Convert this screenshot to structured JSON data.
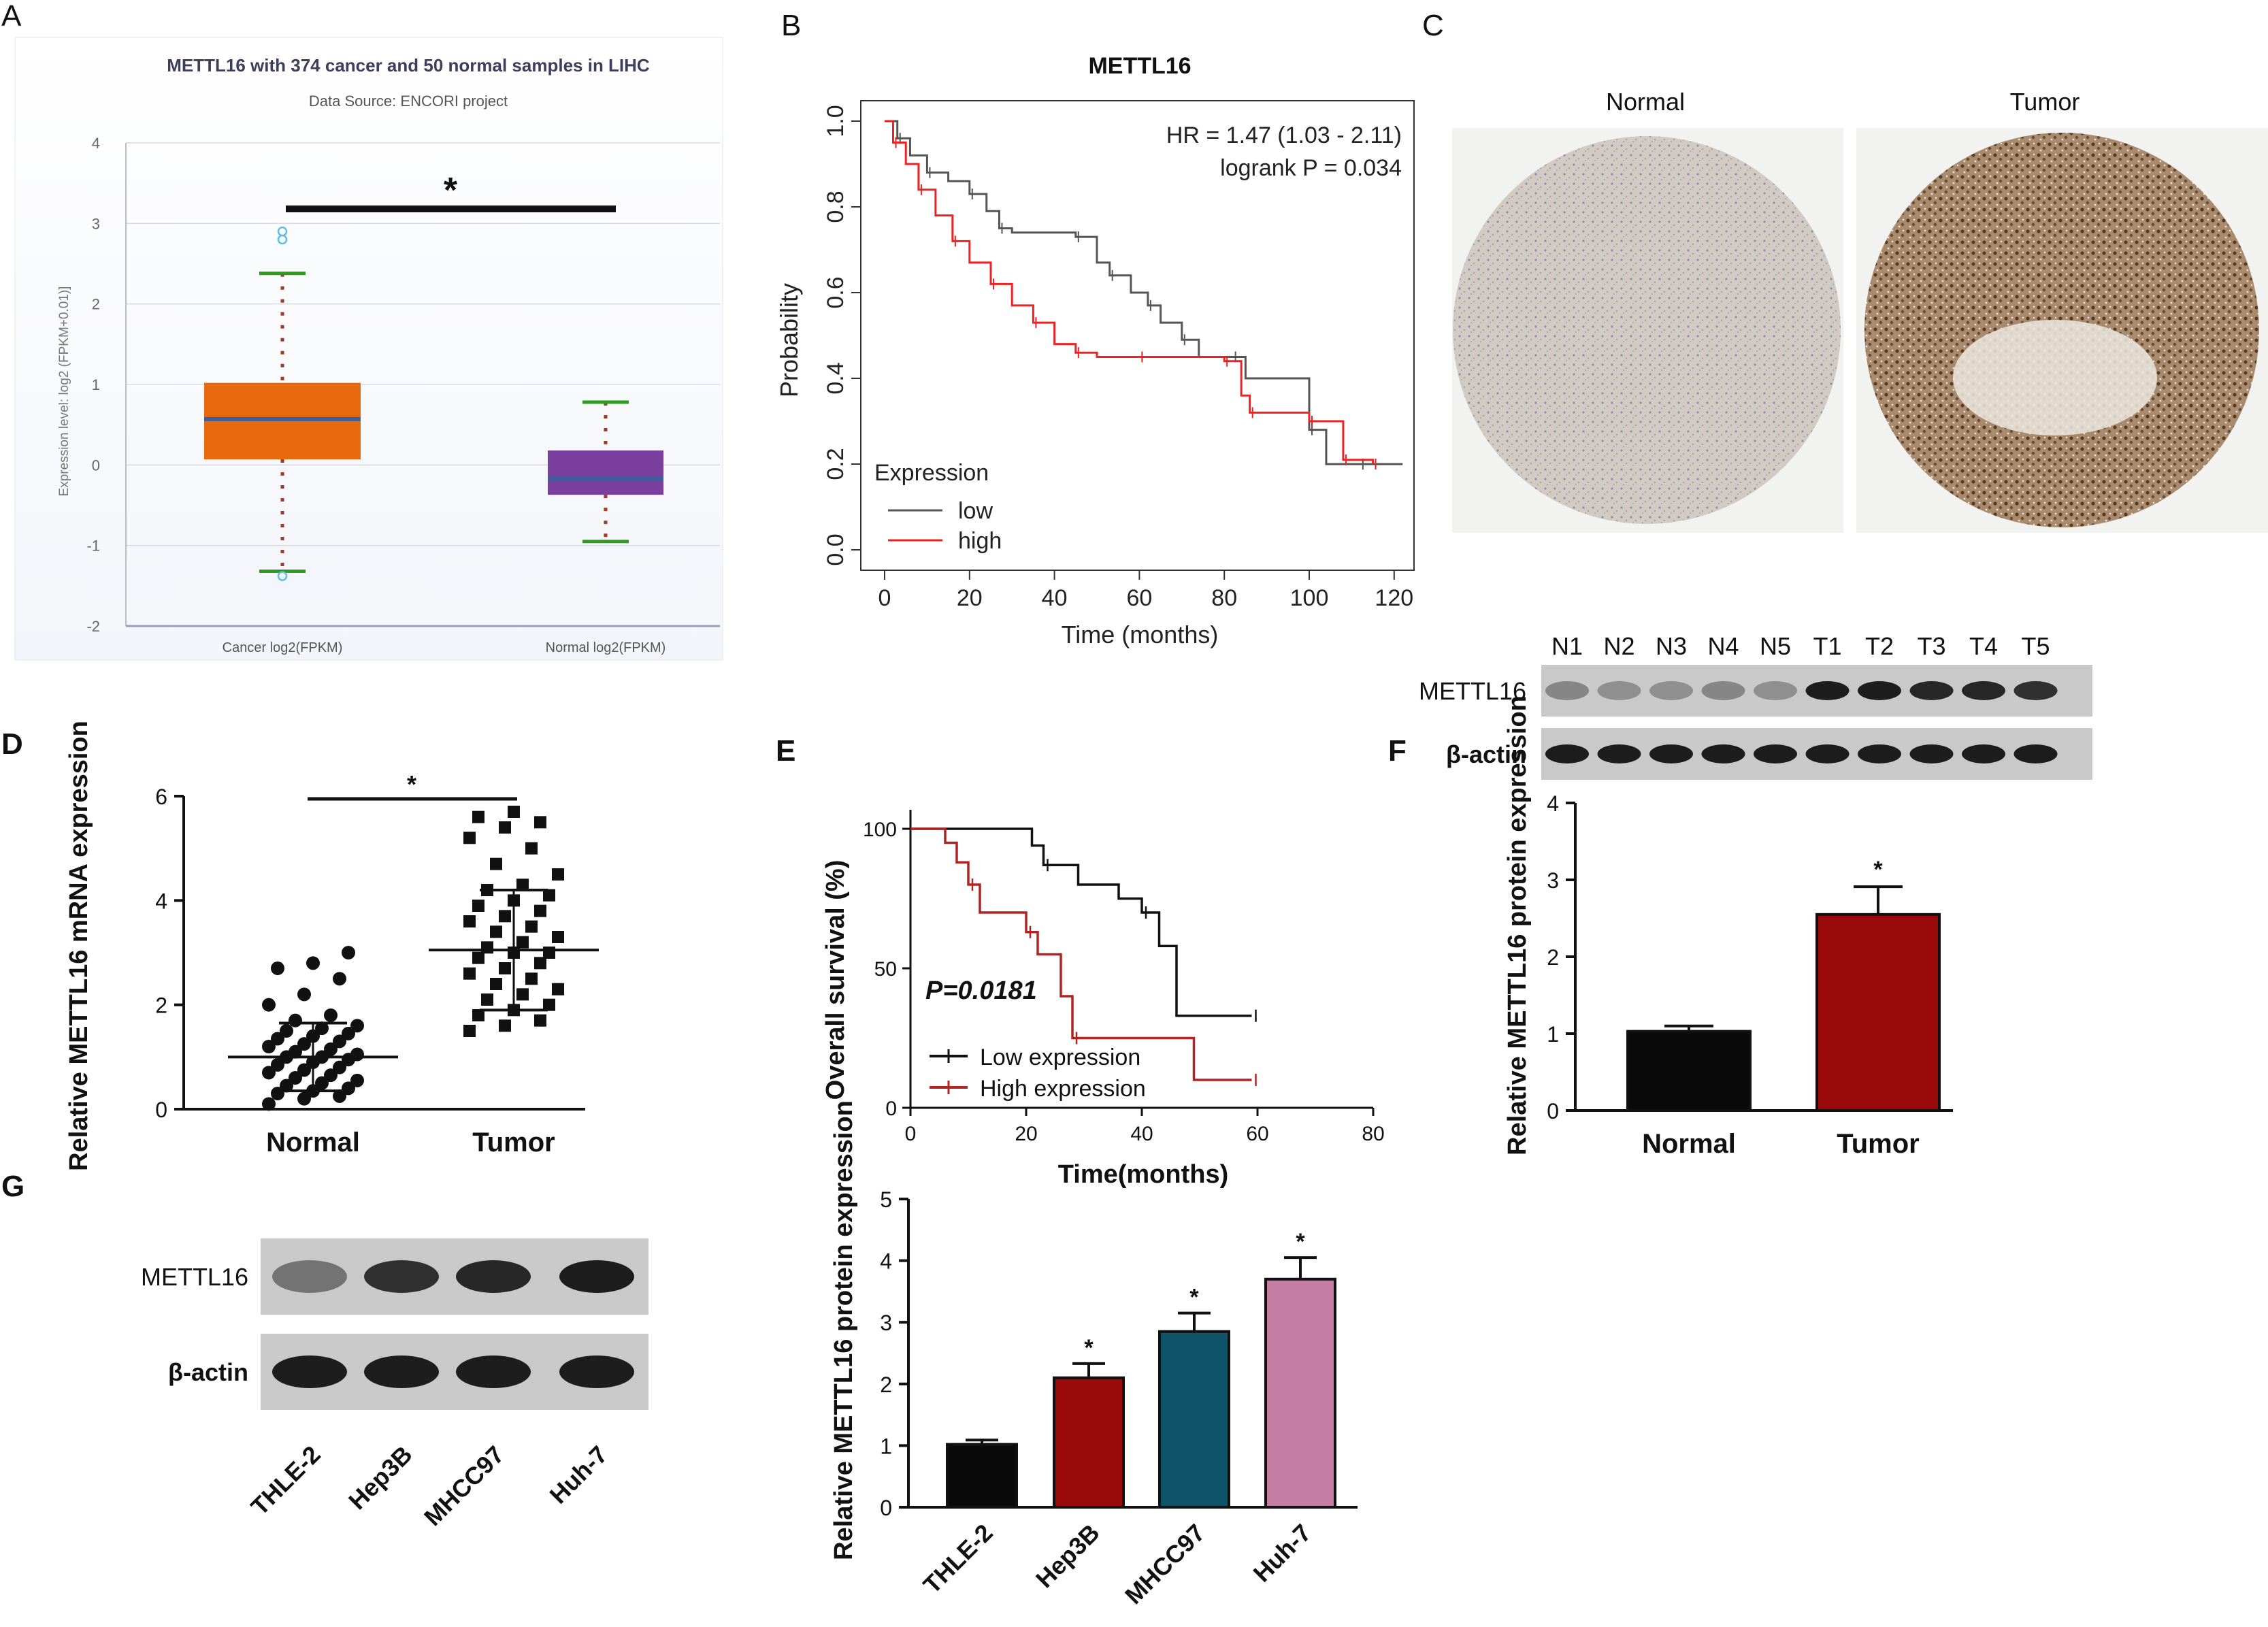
{
  "panels": {
    "A": "A",
    "B": "B",
    "C": "C",
    "D": "D",
    "E": "E",
    "F": "F",
    "G": "G"
  },
  "colors": {
    "cancer_box": "#e8690e",
    "normal_box": "#7b3fa0",
    "median_line": "#3a5f9e",
    "whisker_cap": "#2e9a1e",
    "whisker_dot": "#a03a24",
    "outlier": "#5bbfe8",
    "km_low": "#555555",
    "km_high": "#ee2222",
    "e_low": "#111111",
    "e_high": "#b22424",
    "bar_normal": "#0a0a0a",
    "bar_tumor": "#9b0a0a",
    "bar_thle2": "#0a0a0a",
    "bar_hep3b": "#9b0a0a",
    "bar_mhcc97": "#0e5368",
    "bar_huh7": "#c47ea3",
    "tissue_normal": "#c7bfb6",
    "tissue_tumor": "#8a6a52"
  },
  "chart_data": [
    {
      "id": "A",
      "type": "box",
      "title": "METTL16 with 374 cancer and 50 normal samples in LIHC",
      "subtitle": "Data Source: ENCORI project",
      "ylabel": "Expression level: log2 (FPKM+0.01)]",
      "ylim": [
        -2,
        4
      ],
      "yticks": [
        "4",
        "3",
        "2",
        "1",
        "0",
        "-1",
        "-2"
      ],
      "significance": "*",
      "groups": [
        {
          "name": "Cancer log2(FPKM)",
          "q1": 0.07,
          "median": 0.57,
          "q3": 1.02,
          "whisker_low": -1.32,
          "whisker_high": 2.38,
          "outliers": [
            2.9,
            2.8,
            -1.38
          ]
        },
        {
          "name": "Normal log2(FPKM)",
          "q1": -0.37,
          "median": -0.17,
          "q3": 0.18,
          "whisker_low": -0.95,
          "whisker_high": 0.78,
          "outliers": []
        }
      ]
    },
    {
      "id": "B",
      "type": "line",
      "title": "METTL16",
      "xlabel": "Time (months)",
      "ylabel": "Probability",
      "xlim": [
        0,
        125
      ],
      "ylim": [
        0,
        1.0
      ],
      "xticks": [
        "0",
        "20",
        "40",
        "60",
        "80",
        "100",
        "120"
      ],
      "yticks": [
        "0.0",
        "0.2",
        "0.4",
        "0.6",
        "0.8",
        "1.0"
      ],
      "annotations": [
        "HR = 1.47 (1.03 - 2.11)",
        "logrank P = 0.034"
      ],
      "legend_title": "Expression",
      "series": [
        {
          "name": "low",
          "x": [
            0,
            3,
            6,
            10,
            15,
            20,
            24,
            27,
            30,
            45,
            50,
            53,
            58,
            62,
            65,
            70,
            74,
            82,
            85,
            100,
            104,
            112,
            122
          ],
          "y": [
            1.0,
            0.96,
            0.92,
            0.88,
            0.86,
            0.83,
            0.79,
            0.75,
            0.74,
            0.73,
            0.67,
            0.64,
            0.6,
            0.57,
            0.53,
            0.49,
            0.45,
            0.45,
            0.4,
            0.28,
            0.2,
            0.2,
            0.2
          ]
        },
        {
          "name": "high",
          "x": [
            0,
            2,
            5,
            8,
            12,
            16,
            20,
            25,
            30,
            35,
            40,
            45,
            50,
            60,
            70,
            80,
            84,
            86,
            90,
            100,
            104,
            108,
            112,
            115
          ],
          "y": [
            1.0,
            0.95,
            0.9,
            0.84,
            0.78,
            0.72,
            0.67,
            0.62,
            0.57,
            0.53,
            0.48,
            0.46,
            0.45,
            0.45,
            0.45,
            0.44,
            0.36,
            0.32,
            0.32,
            0.3,
            0.3,
            0.21,
            0.21,
            0.2
          ]
        }
      ]
    },
    {
      "id": "D",
      "type": "scatter",
      "ylabel": "Relative METTL16 mRNA expression",
      "ylim": [
        0,
        6
      ],
      "yticks": [
        "0",
        "2",
        "4",
        "6"
      ],
      "significance": "*",
      "groups": [
        {
          "name": "Normal",
          "mean": 1.0,
          "sd": 0.65,
          "values": [
            0.1,
            0.2,
            0.25,
            0.3,
            0.35,
            0.4,
            0.45,
            0.5,
            0.55,
            0.6,
            0.65,
            0.7,
            0.75,
            0.8,
            0.85,
            0.9,
            0.95,
            1.0,
            1.0,
            1.05,
            1.1,
            1.15,
            1.2,
            1.25,
            1.3,
            1.35,
            1.4,
            1.45,
            1.5,
            1.55,
            1.6,
            1.7,
            1.8,
            2.0,
            2.2,
            2.5,
            2.7,
            2.8,
            3.0
          ]
        },
        {
          "name": "Tumor",
          "mean": 3.05,
          "sd": 1.15,
          "values": [
            1.5,
            1.6,
            1.7,
            1.8,
            1.9,
            2.0,
            2.1,
            2.2,
            2.3,
            2.4,
            2.5,
            2.6,
            2.7,
            2.8,
            2.9,
            3.0,
            3.0,
            3.1,
            3.2,
            3.3,
            3.4,
            3.5,
            3.6,
            3.7,
            3.8,
            3.9,
            4.0,
            4.1,
            4.2,
            4.3,
            4.5,
            4.7,
            5.0,
            5.2,
            5.4,
            5.5,
            5.6,
            5.7
          ]
        }
      ]
    },
    {
      "id": "E",
      "type": "line",
      "xlabel": "Time(months)",
      "ylabel": "Overall survival (%)",
      "xlim": [
        0,
        80
      ],
      "ylim": [
        0,
        100
      ],
      "xticks": [
        "0",
        "20",
        "40",
        "60",
        "80"
      ],
      "yticks": [
        "0",
        "50",
        "100"
      ],
      "annotations": [
        "P=0.0181"
      ],
      "series": [
        {
          "name": "Low expression",
          "x": [
            0,
            19,
            21,
            23,
            29,
            36,
            40,
            43,
            46,
            59
          ],
          "y": [
            100,
            100,
            94,
            87,
            80,
            75,
            70,
            58,
            33,
            33
          ]
        },
        {
          "name": "High expression",
          "x": [
            0,
            6,
            8,
            10,
            12,
            18,
            20,
            22,
            26,
            28,
            47,
            49,
            59
          ],
          "y": [
            100,
            95,
            88,
            80,
            70,
            70,
            63,
            55,
            40,
            25,
            25,
            10,
            10
          ]
        }
      ]
    },
    {
      "id": "F",
      "type": "bar",
      "western_blot": {
        "lanes": [
          "N1",
          "N2",
          "N3",
          "N4",
          "N5",
          "T1",
          "T2",
          "T3",
          "T4",
          "T5"
        ],
        "rows": [
          "METTL16",
          "β-actin"
        ],
        "intensity": [
          [
            0.35,
            0.3,
            0.3,
            0.35,
            0.3,
            0.9,
            0.9,
            0.85,
            0.85,
            0.8
          ],
          [
            0.9,
            0.9,
            0.9,
            0.9,
            0.9,
            0.9,
            0.9,
            0.9,
            0.9,
            0.9
          ]
        ]
      },
      "ylabel": "Relative METTL16 protein expression",
      "ylim": [
        0,
        4
      ],
      "yticks": [
        "0",
        "1",
        "2",
        "3",
        "4"
      ],
      "categories": [
        "Normal",
        "Tumor"
      ],
      "values": [
        1.03,
        2.55
      ],
      "errors": [
        0.07,
        0.36
      ],
      "significance": [
        "",
        "*"
      ]
    },
    {
      "id": "G",
      "type": "bar",
      "western_blot": {
        "lanes": [
          "THLE-2",
          "Hep3B",
          "MHCC97",
          "Huh-7"
        ],
        "rows": [
          "METTL16",
          "β-actin"
        ],
        "intensity": [
          [
            0.45,
            0.8,
            0.85,
            0.9
          ],
          [
            0.9,
            0.9,
            0.9,
            0.9
          ]
        ]
      },
      "ylabel": "Relative METTL16 protein expression",
      "ylim": [
        0,
        5
      ],
      "yticks": [
        "0",
        "1",
        "2",
        "3",
        "4",
        "5"
      ],
      "categories": [
        "THLE-2",
        "Hep3B",
        "MHCC97",
        "Huh-7"
      ],
      "values": [
        1.02,
        2.1,
        2.85,
        3.7
      ],
      "errors": [
        0.07,
        0.23,
        0.3,
        0.35
      ],
      "significance": [
        "",
        "*",
        "*",
        "*"
      ]
    }
  ],
  "ihc": {
    "normal_label": "Normal",
    "tumor_label": "Tumor"
  }
}
